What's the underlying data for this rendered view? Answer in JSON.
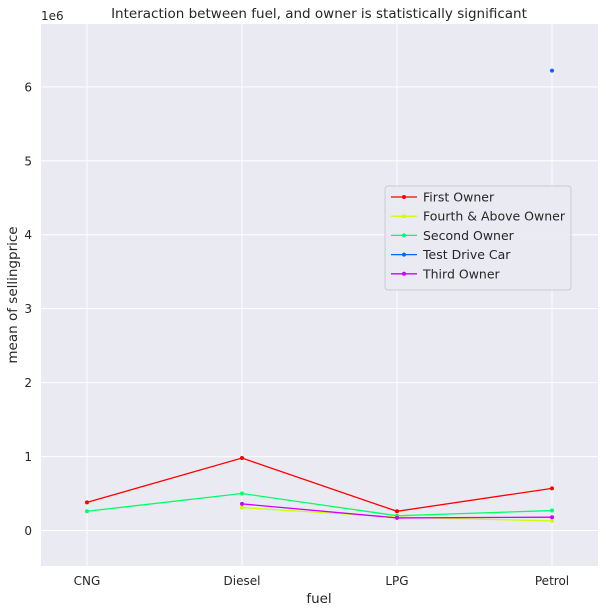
{
  "chart_data": {
    "type": "line",
    "title": "Interaction between fuel, and owner is statistically significant",
    "xlabel": "fuel",
    "ylabel": "mean of sellingprice",
    "y_offset_label": "1e6",
    "categories": [
      "CNG",
      "Diesel",
      "LPG",
      "Petrol"
    ],
    "ylim": [
      -0.48,
      6.85
    ],
    "yticks": [
      0,
      1,
      2,
      3,
      4,
      5,
      6
    ],
    "y_scale_factor": 1000000,
    "grid": true,
    "legend_position": "center-right",
    "series": [
      {
        "name": "First Owner",
        "color": "#ff0000",
        "values": [
          0.38,
          0.98,
          0.26,
          0.57
        ]
      },
      {
        "name": "Fourth & Above Owner",
        "color": "#ccff00",
        "values": [
          null,
          0.31,
          0.18,
          0.13
        ]
      },
      {
        "name": "Second Owner",
        "color": "#00ff66",
        "values": [
          0.26,
          0.5,
          0.2,
          0.27
        ]
      },
      {
        "name": "Test Drive Car",
        "color": "#0066ff",
        "values": [
          null,
          null,
          null,
          6.22
        ]
      },
      {
        "name": "Third Owner",
        "color": "#cc00ff",
        "values": [
          null,
          0.36,
          0.17,
          0.18
        ]
      }
    ]
  }
}
